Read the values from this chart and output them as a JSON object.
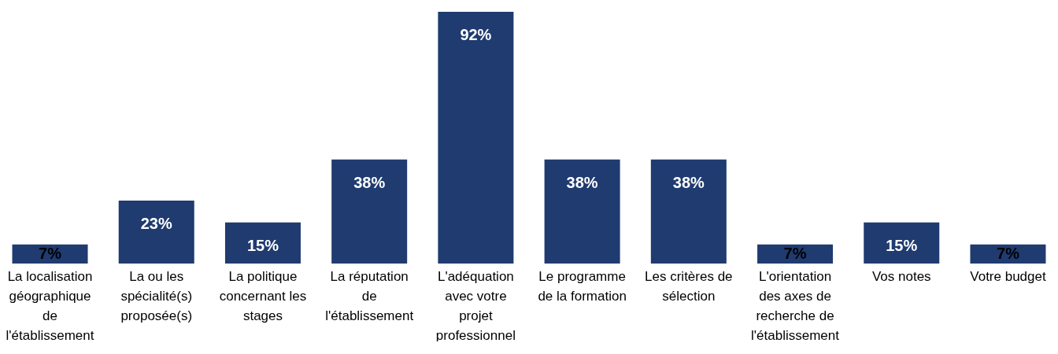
{
  "chart_data": {
    "type": "bar",
    "categories": [
      "La localisation géographique de l'établissement",
      "La ou les spécialité(s) proposée(s)",
      "La politique concernant les stages",
      "La réputation de l'établissement",
      "L'adéquation avec votre projet professionnel",
      "Le programme de la formation",
      "Les critères de sélection",
      "L'orientation des axes de recherche de l'établissement",
      "Vos notes",
      "Votre budget"
    ],
    "values": [
      7,
      23,
      15,
      38,
      92,
      38,
      38,
      7,
      15,
      7
    ],
    "value_labels": [
      "7%",
      "23%",
      "15%",
      "38%",
      "92%",
      "38%",
      "38%",
      "7%",
      "15%",
      "7%"
    ],
    "color": "#1f3b70"
  }
}
